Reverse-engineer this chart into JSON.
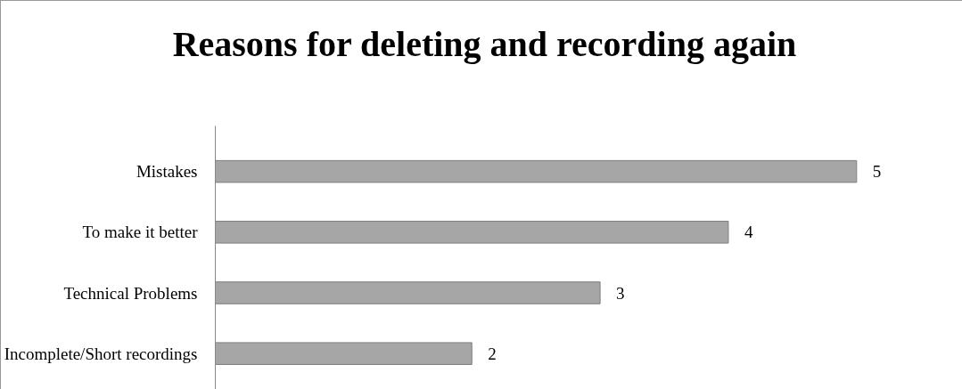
{
  "chart_data": {
    "type": "bar",
    "orientation": "horizontal",
    "title": "Reasons for deleting and recording again",
    "categories": [
      "Mistakes",
      "To make it better",
      "Technical Problems",
      "Incomplete/Short recordings"
    ],
    "values": [
      5,
      4,
      3,
      2
    ],
    "color": "#a6a6a6",
    "data_labels": true,
    "grid": false
  }
}
